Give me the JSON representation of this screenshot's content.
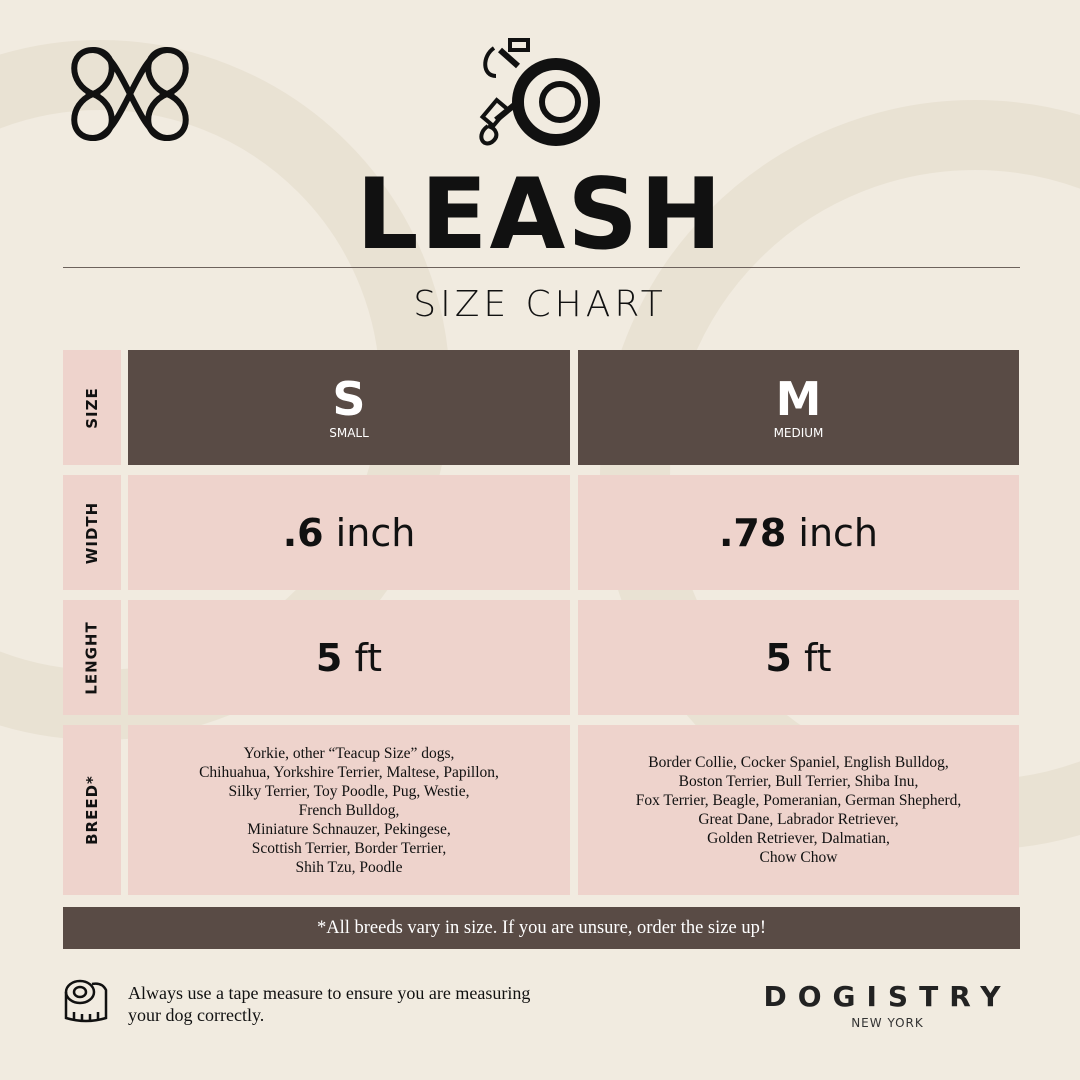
{
  "colors": {
    "background": "#f1ebe0",
    "dark": "#594b45",
    "pink": "#eed3cc"
  },
  "icons": {
    "logo": "knot-logo-icon",
    "header": "leash-icon",
    "tip": "tape-measure-icon"
  },
  "title": "LEASH",
  "subtitle": "SIZE CHART",
  "row_labels": {
    "size": "SIZE",
    "width": "WIDTH",
    "length": "LENGHT",
    "breed": "BREED*"
  },
  "sizes": [
    {
      "letter": "S",
      "name": "SMALL",
      "width_num": ".6",
      "width_unit": " inch",
      "length_num": "5",
      "length_unit": " ft",
      "breeds": [
        "Yorkie, other “Teacup Size” dogs,",
        "Chihuahua, Yorkshire Terrier, Maltese, Papillon,",
        "Silky Terrier, Toy Poodle, Pug, Westie,",
        "French Bulldog,",
        "Miniature Schnauzer, Pekingese,",
        "Scottish Terrier, Border Terrier,",
        "Shih Tzu, Poodle"
      ]
    },
    {
      "letter": "M",
      "name": "MEDIUM",
      "width_num": ".78",
      "width_unit": " inch",
      "length_num": "5",
      "length_unit": " ft",
      "breeds": [
        "Border Collie, Cocker Spaniel, English Bulldog,",
        "Boston Terrier, Bull Terrier, Shiba Inu,",
        "Fox Terrier, Beagle, Pomeranian, German Shepherd,",
        "Great Dane, Labrador Retriever,",
        "Golden Retriever, Dalmatian,",
        "Chow Chow"
      ]
    }
  ],
  "note": "*All breeds vary in size. If you are unsure, order the size up!",
  "tip": [
    "Always use a tape measure to ensure you are measuring",
    "your dog correctly."
  ],
  "brand": {
    "name": "DOGISTRY",
    "city": "NEW YORK"
  }
}
